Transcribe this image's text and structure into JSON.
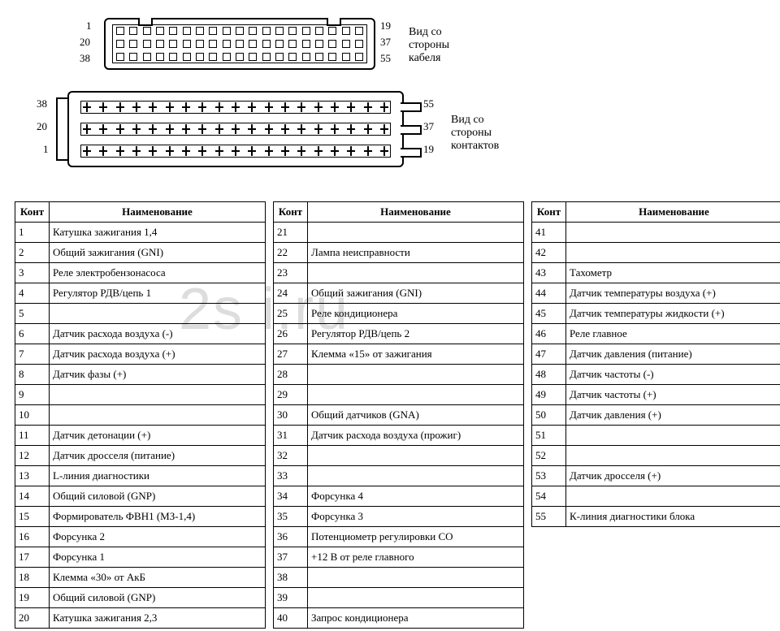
{
  "connector1": {
    "pins_per_row": 19,
    "left_labels": [
      "1",
      "20",
      "38"
    ],
    "right_labels": [
      "19",
      "37",
      "55"
    ],
    "caption_line1": "Вид со стороны",
    "caption_line2": "кабеля"
  },
  "connector2": {
    "pins_per_row": 19,
    "left_labels": [
      "38",
      "20",
      "1"
    ],
    "right_labels": [
      "55",
      "37",
      "19"
    ],
    "caption_line1": "Вид со стороны",
    "caption_line2": "контактов"
  },
  "watermark": "2s      i.ru",
  "table": {
    "header_num": "Конт",
    "header_name": "Наименование",
    "colors": {
      "border": "#000000",
      "text": "#000000",
      "background": "#ffffff"
    },
    "font_size_pt": 10,
    "rows": [
      {
        "a_num": "1",
        "a_name": "Катушка зажигания 1,4",
        "b_num": "21",
        "b_name": "",
        "c_num": "41",
        "c_name": ""
      },
      {
        "a_num": "2",
        "a_name": "Общий зажигания (GNI)",
        "b_num": "22",
        "b_name": "Лампа неисправности",
        "c_num": "42",
        "c_name": ""
      },
      {
        "a_num": "3",
        "a_name": "Реле электробензонасоса",
        "b_num": "23",
        "b_name": "",
        "c_num": "43",
        "c_name": "Тахометр"
      },
      {
        "a_num": "4",
        "a_name": "Регулятор РДВ/цепь 1",
        "b_num": "24",
        "b_name": "Общий зажигания (GNI)",
        "c_num": "44",
        "c_name": "Датчик температуры воздуха (+)"
      },
      {
        "a_num": "5",
        "a_name": "",
        "b_num": "25",
        "b_name": "Реле кондиционера",
        "c_num": "45",
        "c_name": "Датчик температуры жидкости (+)"
      },
      {
        "a_num": "6",
        "a_name": "Датчик расхода воздуха (-)",
        "b_num": "26",
        "b_name": "Регулятор РДВ/цепь 2",
        "c_num": "46",
        "c_name": "Реле главное"
      },
      {
        "a_num": "7",
        "a_name": "Датчик расхода воздуха (+)",
        "b_num": "27",
        "b_name": "Клемма «15» от зажигания",
        "c_num": "47",
        "c_name": "Датчик давления (питание)"
      },
      {
        "a_num": "8",
        "a_name": "Датчик фазы (+)",
        "b_num": "28",
        "b_name": "",
        "c_num": "48",
        "c_name": "Датчик частоты (-)"
      },
      {
        "a_num": "9",
        "a_name": "",
        "b_num": "29",
        "b_name": "",
        "c_num": "49",
        "c_name": "Датчик частоты (+)"
      },
      {
        "a_num": "10",
        "a_name": "",
        "b_num": "30",
        "b_name": "Общий датчиков (GNA)",
        "c_num": "50",
        "c_name": "Датчик давления (+)"
      },
      {
        "a_num": "11",
        "a_name": "Датчик детонации (+)",
        "b_num": "31",
        "b_name": "Датчик расхода воздуха (прожиг)",
        "c_num": "51",
        "c_name": ""
      },
      {
        "a_num": "12",
        "a_name": "Датчик дросселя (питание)",
        "b_num": "32",
        "b_name": "",
        "c_num": "52",
        "c_name": ""
      },
      {
        "a_num": "13",
        "a_name": "L-линия диагностики",
        "b_num": "33",
        "b_name": "",
        "c_num": "53",
        "c_name": "Датчик дросселя (+)"
      },
      {
        "a_num": "14",
        "a_name": "Общий силовой (GNP)",
        "b_num": "34",
        "b_name": "Форсунка 4",
        "c_num": "54",
        "c_name": ""
      },
      {
        "a_num": "15",
        "a_name": "Формирователь ФВН1 (МЗ-1,4)",
        "b_num": "35",
        "b_name": "Форсунка 3",
        "c_num": "55",
        "c_name": "К-линия диагностики блока"
      },
      {
        "a_num": "16",
        "a_name": "Форсунка 2",
        "b_num": "36",
        "b_name": "Потенциометр регулировки СО",
        "c_num": "",
        "c_name": ""
      },
      {
        "a_num": "17",
        "a_name": "Форсунка 1",
        "b_num": "37",
        "b_name": "+12 В от реле главного",
        "c_num": "",
        "c_name": ""
      },
      {
        "a_num": "18",
        "a_name": "Клемма «30» от АкБ",
        "b_num": "38",
        "b_name": "",
        "c_num": "",
        "c_name": ""
      },
      {
        "a_num": "19",
        "a_name": "Общий силовой (GNP)",
        "b_num": "39",
        "b_name": "",
        "c_num": "",
        "c_name": ""
      },
      {
        "a_num": "20",
        "a_name": "Катушка зажигания 2,3",
        "b_num": "40",
        "b_name": "Запрос кондиционера",
        "c_num": "",
        "c_name": ""
      }
    ]
  }
}
